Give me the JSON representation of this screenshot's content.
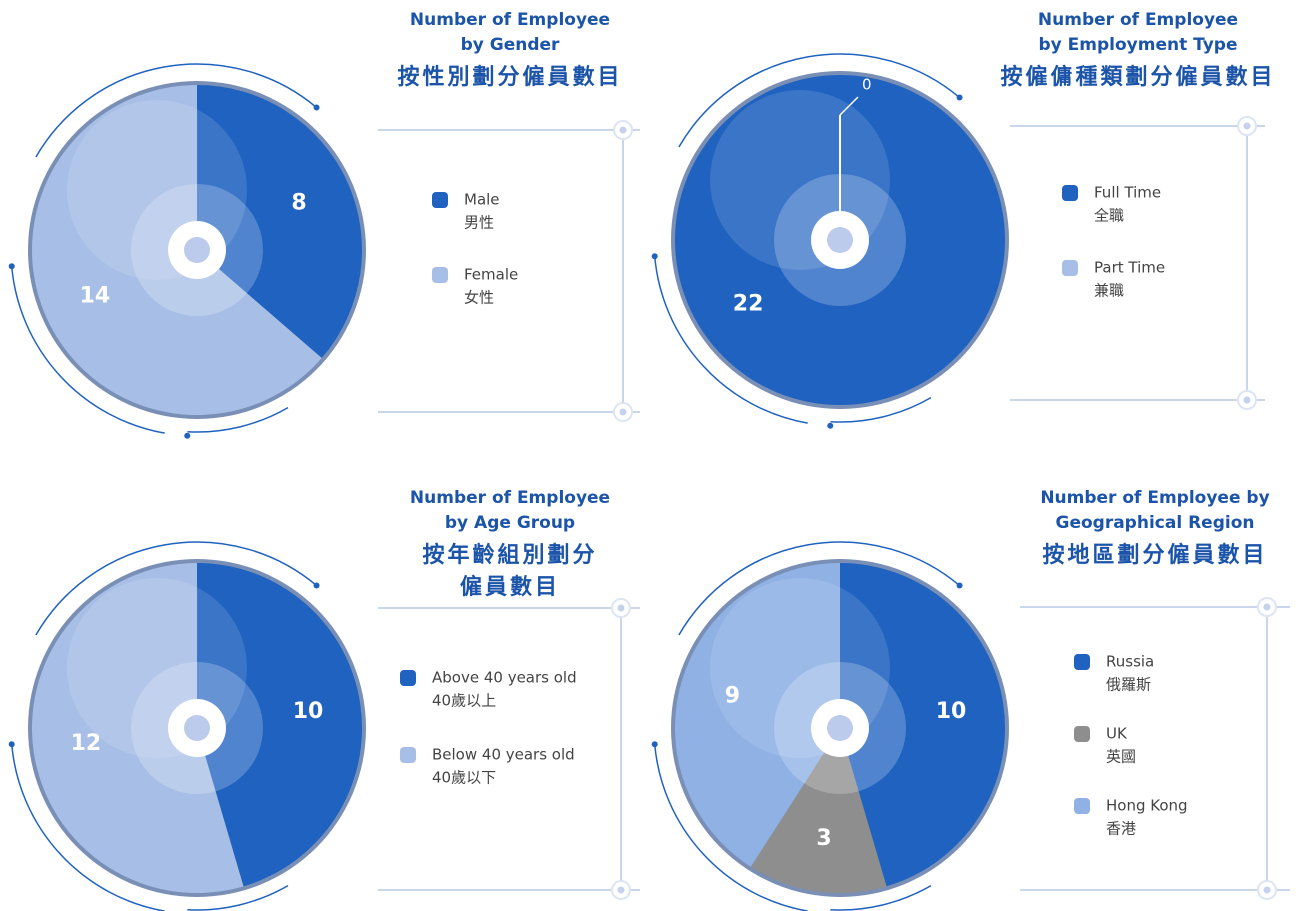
{
  "chart_data": [
    {
      "type": "pie",
      "title": [
        "Number of Employee",
        "by Gender"
      ],
      "subtitle": [
        "按性別劃分僱員數目"
      ],
      "categories": [
        "Male",
        "Female"
      ],
      "categories_zh": [
        "男性",
        "女性"
      ],
      "values": [
        8,
        14
      ],
      "colors": [
        "#1f62c0",
        "#a7bfe6"
      ]
    },
    {
      "type": "pie",
      "title": [
        "Number of Employee",
        "by Employment Type"
      ],
      "subtitle": [
        "按僱傭種類劃分僱員數目"
      ],
      "categories": [
        "Full Time",
        "Part Time"
      ],
      "categories_zh": [
        "全職",
        "兼職"
      ],
      "values": [
        22,
        0
      ],
      "colors": [
        "#1f62c0",
        "#a7bfe6"
      ]
    },
    {
      "type": "pie",
      "title": [
        "Number of Employee",
        "by Age Group"
      ],
      "subtitle": [
        "按年齡組別劃分",
        "僱員數目"
      ],
      "categories": [
        "Above 40 years old",
        "Below 40 years old"
      ],
      "categories_zh": [
        "40歲以上",
        "40歲以下"
      ],
      "values": [
        10,
        12
      ],
      "colors": [
        "#1f62c0",
        "#a7bfe6"
      ]
    },
    {
      "type": "pie",
      "title": [
        "Number of Employee by",
        "Geographical Region"
      ],
      "subtitle": [
        "按地區劃分僱員數目"
      ],
      "categories": [
        "Russia",
        "UK",
        "Hong Kong"
      ],
      "categories_zh": [
        "俄羅斯",
        "英國",
        "香港"
      ],
      "values": [
        10,
        3,
        9
      ],
      "colors": [
        "#1f62c0",
        "#8e8e8e",
        "#8fb1e4"
      ]
    }
  ]
}
